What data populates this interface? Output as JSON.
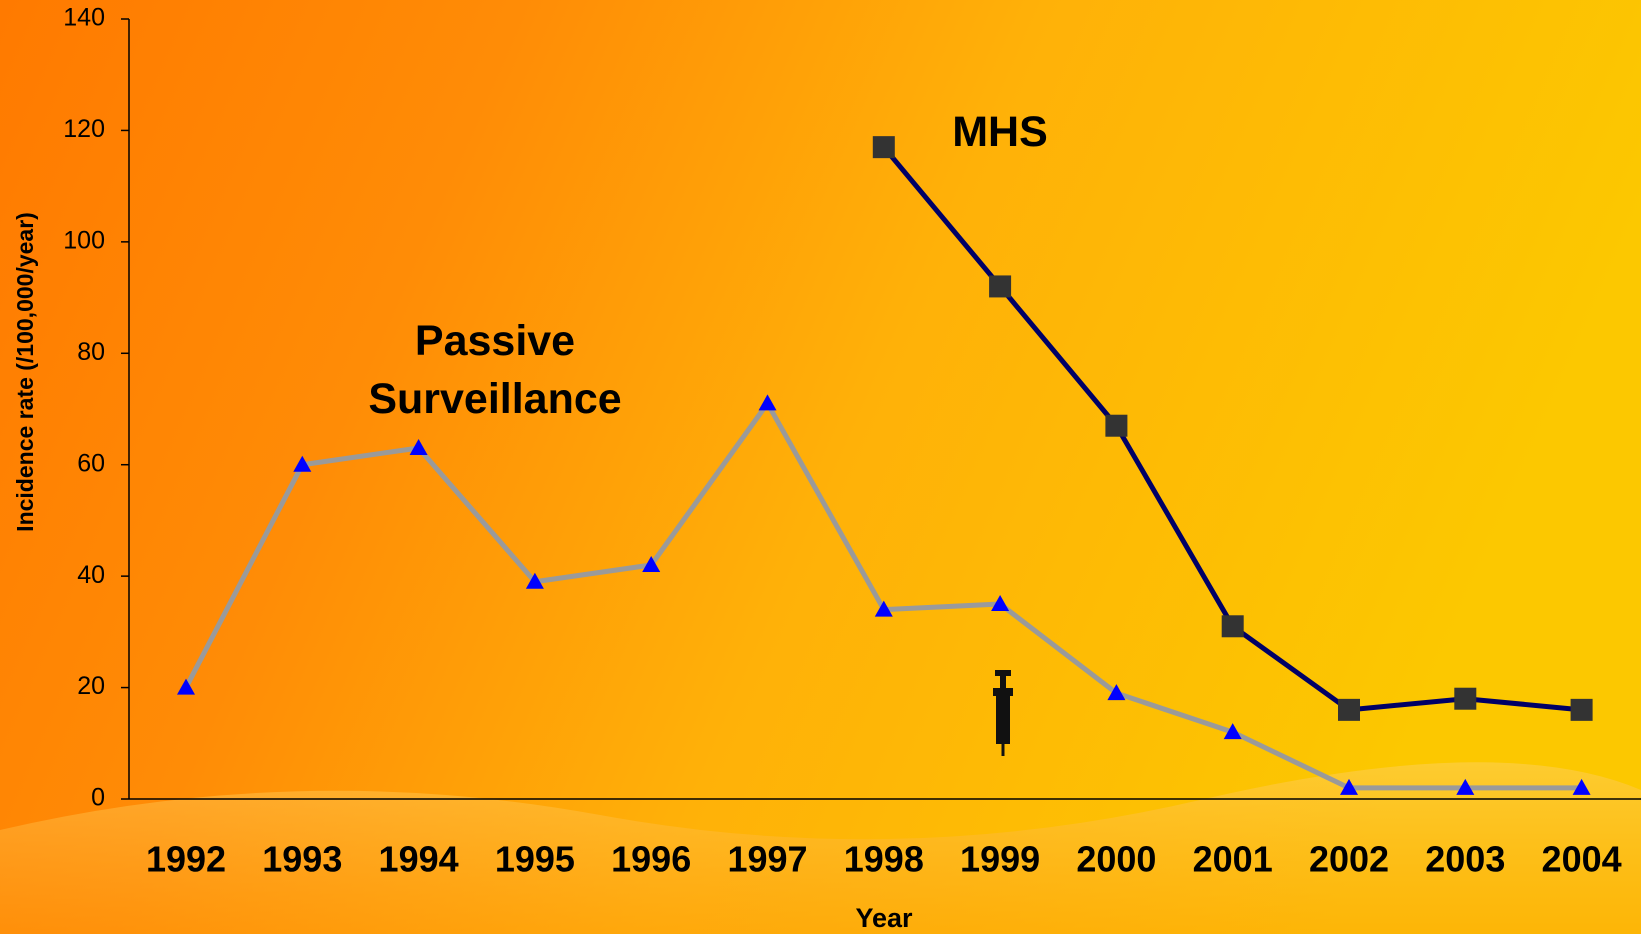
{
  "chart_data": {
    "type": "line",
    "xlabel": "Year",
    "ylabel": "Incidence rate (/100,000/year)",
    "categories": [
      "1992",
      "1993",
      "1994",
      "1995",
      "1996",
      "1997",
      "1998",
      "1999",
      "2000",
      "2001",
      "2002",
      "2003",
      "2004"
    ],
    "ylim": [
      0,
      140
    ],
    "yticks": [
      0,
      20,
      40,
      60,
      80,
      100,
      120,
      140
    ],
    "grid": false,
    "series": [
      {
        "name": "Passive Surveillance",
        "color": "#9a9a9a",
        "marker": "triangle",
        "marker_color": "#0000ff",
        "values": [
          20,
          60,
          63,
          39,
          42,
          71,
          34,
          35,
          19,
          12,
          2,
          2,
          2
        ]
      },
      {
        "name": "MHS",
        "color": "#000066",
        "marker": "square",
        "marker_color": "#333333",
        "values": [
          null,
          null,
          null,
          null,
          null,
          null,
          117,
          92,
          67,
          31,
          16,
          18,
          16
        ]
      }
    ]
  }
}
